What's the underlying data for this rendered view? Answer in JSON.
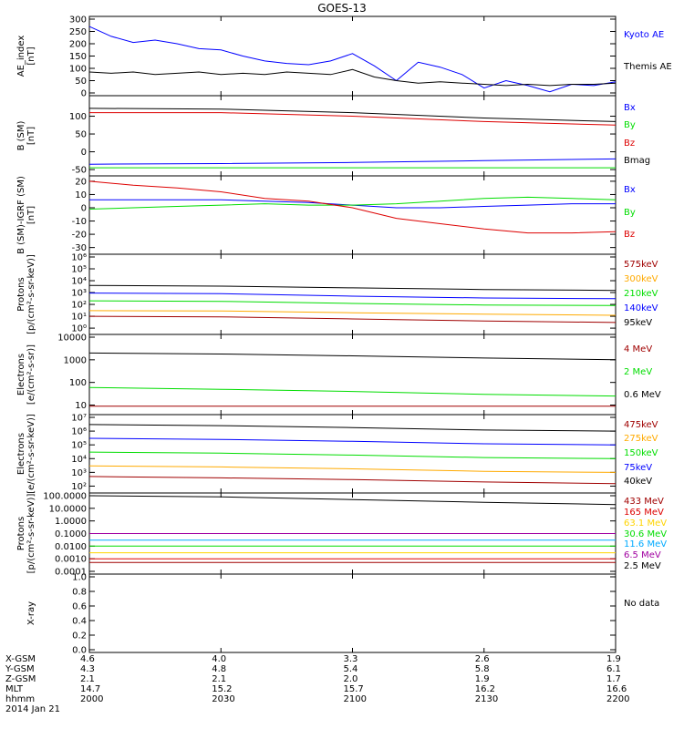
{
  "title": "GOES-13",
  "colors": {
    "black": "#000000",
    "blue": "#0000ff",
    "green": "#00dd00",
    "red": "#dd0000",
    "orange": "#ffaa00",
    "darkred": "#a00000",
    "cyan": "#00aaff",
    "yellow": "#ffd400",
    "purple": "#a000a0"
  },
  "chart_data": [
    {
      "type": "line",
      "ylabel": [
        "AE_index",
        "[nT]"
      ],
      "yscale": "linear",
      "ylim": [
        0,
        300
      ],
      "yticks": [
        0,
        50,
        100,
        150,
        200,
        250,
        300
      ],
      "yticklabels": [
        "0",
        "50",
        "100",
        "150",
        "200",
        "250",
        "300"
      ],
      "series": [
        {
          "name": "Kyoto AE",
          "color": "blue",
          "x": [
            0,
            5,
            10,
            15,
            20,
            25,
            30,
            35,
            40,
            45,
            50,
            55,
            60,
            65,
            70,
            75,
            80,
            85,
            90,
            95,
            100,
            105,
            110,
            115,
            120
          ],
          "y": [
            270,
            230,
            205,
            215,
            200,
            180,
            175,
            150,
            130,
            120,
            115,
            130,
            160,
            110,
            50,
            125,
            105,
            75,
            20,
            50,
            30,
            5,
            35,
            30,
            45
          ]
        },
        {
          "name": "Themis AE",
          "color": "black",
          "x": [
            0,
            5,
            10,
            15,
            20,
            25,
            30,
            35,
            40,
            45,
            50,
            55,
            60,
            65,
            70,
            75,
            80,
            85,
            90,
            95,
            100,
            105,
            110,
            115,
            120
          ],
          "y": [
            85,
            80,
            85,
            75,
            80,
            85,
            75,
            80,
            75,
            85,
            80,
            75,
            95,
            65,
            50,
            40,
            45,
            40,
            35,
            30,
            35,
            30,
            35,
            35,
            40
          ]
        }
      ]
    },
    {
      "type": "line",
      "ylabel": [
        "B (SM)",
        "[nT]"
      ],
      "yscale": "linear",
      "ylim": [
        -60,
        150
      ],
      "yticks": [
        -50,
        0,
        50,
        100
      ],
      "yticklabels": [
        "-50",
        "0",
        "50",
        "100"
      ],
      "series": [
        {
          "name": "Bx",
          "color": "blue",
          "x": [
            0,
            30,
            60,
            90,
            120
          ],
          "y": [
            -35,
            -33,
            -30,
            -25,
            -20
          ]
        },
        {
          "name": "By",
          "color": "green",
          "x": [
            0,
            30,
            60,
            90,
            120
          ],
          "y": [
            -45,
            -45,
            -45,
            -45,
            -45
          ]
        },
        {
          "name": "Bz",
          "color": "red",
          "x": [
            0,
            30,
            60,
            90,
            120
          ],
          "y": [
            110,
            110,
            100,
            85,
            75
          ]
        },
        {
          "name": "Bmag",
          "color": "black",
          "x": [
            0,
            30,
            60,
            90,
            120
          ],
          "y": [
            122,
            120,
            110,
            95,
            85
          ]
        }
      ]
    },
    {
      "type": "line",
      "ylabel": [
        "B (SM)-IGRF (SM)",
        "[nT]"
      ],
      "yscale": "linear",
      "ylim": [
        -33,
        22
      ],
      "yticks": [
        -30,
        -20,
        -10,
        0,
        10,
        20
      ],
      "yticklabels": [
        "-30",
        "-20",
        "-10",
        "0",
        "10",
        "20"
      ],
      "series": [
        {
          "name": "Bx",
          "color": "blue",
          "x": [
            0,
            10,
            20,
            30,
            40,
            50,
            60,
            70,
            80,
            90,
            100,
            110,
            120
          ],
          "y": [
            6,
            6,
            6,
            6,
            5,
            4,
            2,
            0,
            0,
            1,
            2,
            3,
            3
          ]
        },
        {
          "name": "By",
          "color": "green",
          "x": [
            0,
            10,
            20,
            30,
            40,
            50,
            60,
            70,
            80,
            90,
            100,
            110,
            120
          ],
          "y": [
            -1,
            0,
            1,
            2,
            3,
            2,
            2,
            3,
            5,
            7,
            8,
            7,
            6
          ]
        },
        {
          "name": "Bz",
          "color": "red",
          "x": [
            0,
            10,
            20,
            30,
            40,
            50,
            60,
            70,
            80,
            90,
            100,
            110,
            120
          ],
          "y": [
            20,
            17,
            15,
            12,
            7,
            5,
            0,
            -8,
            -12,
            -16,
            -19,
            -19,
            -18
          ]
        }
      ]
    },
    {
      "type": "line",
      "ylabel": [
        "Protons",
        "[p/(cm²-s-sr-keV)]"
      ],
      "yscale": "log",
      "ylim": [
        0.5,
        1000000
      ],
      "yticks": [
        1,
        10,
        100,
        1000,
        10000,
        100000,
        1000000
      ],
      "yticklabels": [
        "10⁰",
        "10¹",
        "10²",
        "10³",
        "10⁴",
        "10⁵",
        "10⁶"
      ],
      "series": [
        {
          "name": "575keV",
          "color": "darkred",
          "x": [
            0,
            30,
            60,
            90,
            120
          ],
          "y": [
            10,
            9,
            6,
            4,
            3
          ]
        },
        {
          "name": "300keV",
          "color": "orange",
          "x": [
            0,
            30,
            60,
            90,
            120
          ],
          "y": [
            30,
            28,
            20,
            15,
            12
          ]
        },
        {
          "name": "210keV",
          "color": "green",
          "x": [
            0,
            30,
            60,
            90,
            120
          ],
          "y": [
            200,
            180,
            120,
            90,
            80
          ]
        },
        {
          "name": "140keV",
          "color": "blue",
          "x": [
            0,
            30,
            60,
            90,
            120
          ],
          "y": [
            900,
            800,
            500,
            350,
            300
          ]
        },
        {
          "name": "95keV",
          "color": "black",
          "x": [
            0,
            30,
            60,
            90,
            120
          ],
          "y": [
            4000,
            3500,
            2500,
            1800,
            1500
          ]
        }
      ]
    },
    {
      "type": "line",
      "ylabel": [
        "Electrons",
        "[e/(cm²-s-sr)]"
      ],
      "yscale": "log",
      "ylim": [
        5,
        10000
      ],
      "yticks": [
        10,
        100,
        1000,
        10000
      ],
      "yticklabels": [
        "10",
        "100",
        "1000",
        "10000"
      ],
      "series": [
        {
          "name": "4 MeV",
          "color": "darkred",
          "x": [
            0,
            30,
            60,
            90,
            120
          ],
          "y": [
            9,
            9,
            9,
            9,
            9
          ]
        },
        {
          "name": "2 MeV",
          "color": "green",
          "x": [
            0,
            30,
            60,
            90,
            120
          ],
          "y": [
            60,
            50,
            40,
            30,
            25
          ]
        },
        {
          "name": "0.6 MeV",
          "color": "black",
          "x": [
            0,
            30,
            60,
            90,
            120
          ],
          "y": [
            2000,
            1800,
            1500,
            1200,
            1000
          ]
        }
      ]
    },
    {
      "type": "line",
      "ylabel": [
        "Electrons",
        "[e/(cm²-s-sr-keV)]"
      ],
      "yscale": "log",
      "ylim": [
        50,
        10000000
      ],
      "yticks": [
        100,
        1000,
        10000,
        100000,
        1000000,
        10000000
      ],
      "yticklabels": [
        "10²",
        "10³",
        "10⁴",
        "10⁵",
        "10⁶",
        "10⁷"
      ],
      "series": [
        {
          "name": "475keV",
          "color": "darkred",
          "x": [
            0,
            30,
            60,
            90,
            120
          ],
          "y": [
            500,
            400,
            300,
            200,
            150
          ]
        },
        {
          "name": "275keV",
          "color": "orange",
          "x": [
            0,
            30,
            60,
            90,
            120
          ],
          "y": [
            3000,
            2500,
            1800,
            1200,
            1000
          ]
        },
        {
          "name": "150keV",
          "color": "green",
          "x": [
            0,
            30,
            60,
            90,
            120
          ],
          "y": [
            30000,
            25000,
            18000,
            12000,
            10000
          ]
        },
        {
          "name": "75keV",
          "color": "blue",
          "x": [
            0,
            30,
            60,
            90,
            120
          ],
          "y": [
            300000,
            250000,
            180000,
            120000,
            100000
          ]
        },
        {
          "name": "40keV",
          "color": "black",
          "x": [
            0,
            30,
            60,
            90,
            120
          ],
          "y": [
            3000000,
            2500000,
            1800000,
            1200000,
            1000000
          ]
        }
      ]
    },
    {
      "type": "line",
      "ylabel": [
        "Protons",
        "[p/(cm²-s-sr-keV)]"
      ],
      "yscale": "log",
      "ylim": [
        0.0001,
        100
      ],
      "yticks": [
        0.0001,
        0.001,
        0.01,
        0.1,
        1,
        10,
        100
      ],
      "yticklabels": [
        "0.0001",
        "0.0010",
        "0.0100",
        "0.1000",
        "1.0000",
        "10.0000",
        "100.0000"
      ],
      "series": [
        {
          "name": "433 MeV",
          "color": "darkred",
          "x": [
            0,
            30,
            60,
            90,
            120
          ],
          "y": [
            0.0005,
            0.0005,
            0.0005,
            0.0005,
            0.0005
          ]
        },
        {
          "name": "165 MeV",
          "color": "red",
          "x": [
            0,
            30,
            60,
            90,
            120
          ],
          "y": [
            0.001,
            0.001,
            0.001,
            0.001,
            0.001
          ]
        },
        {
          "name": "63.1 MeV",
          "color": "yellow",
          "x": [
            0,
            30,
            60,
            90,
            120
          ],
          "y": [
            0.003,
            0.003,
            0.003,
            0.003,
            0.003
          ]
        },
        {
          "name": "30.6 MeV",
          "color": "green",
          "x": [
            0,
            30,
            60,
            90,
            120
          ],
          "y": [
            0.01,
            0.01,
            0.01,
            0.01,
            0.01
          ]
        },
        {
          "name": "11.6 MeV",
          "color": "cyan",
          "x": [
            0,
            30,
            60,
            90,
            120
          ],
          "y": [
            0.03,
            0.03,
            0.03,
            0.03,
            0.03
          ]
        },
        {
          "name": "6.5 MeV",
          "color": "purple",
          "x": [
            0,
            30,
            60,
            90,
            120
          ],
          "y": [
            0.1,
            0.1,
            0.1,
            0.1,
            0.1
          ]
        },
        {
          "name": "2.5 MeV",
          "color": "black",
          "x": [
            0,
            30,
            60,
            90,
            120
          ],
          "y": [
            100,
            80,
            50,
            30,
            20
          ]
        }
      ]
    },
    {
      "type": "line",
      "ylabel": [
        "X-ray"
      ],
      "yscale": "linear",
      "ylim": [
        0,
        1
      ],
      "yticks": [
        0,
        0.2,
        0.4,
        0.6,
        0.8,
        1
      ],
      "yticklabels": [
        "0.0",
        "0.2",
        "0.4",
        "0.6",
        "0.8",
        "1.0"
      ],
      "series": [],
      "note": "No data"
    }
  ],
  "x_axis": {
    "range": [
      0,
      120
    ],
    "ticks": [
      0,
      30,
      60,
      90,
      120
    ],
    "rows": [
      {
        "label": "X-GSM",
        "values": [
          "4.6",
          "4.0",
          "3.3",
          "2.6",
          "1.9"
        ]
      },
      {
        "label": "Y-GSM",
        "values": [
          "4.3",
          "4.8",
          "5.4",
          "5.8",
          "6.1"
        ]
      },
      {
        "label": "Z-GSM",
        "values": [
          "2.1",
          "2.1",
          "2.0",
          "1.9",
          "1.7"
        ]
      },
      {
        "label": "MLT",
        "values": [
          "14.7",
          "15.2",
          "15.7",
          "16.2",
          "16.6"
        ]
      },
      {
        "label": "hhmm",
        "values": [
          "2000",
          "2030",
          "2100",
          "2130",
          "2200"
        ]
      }
    ],
    "date": "2014 Jan 21"
  }
}
